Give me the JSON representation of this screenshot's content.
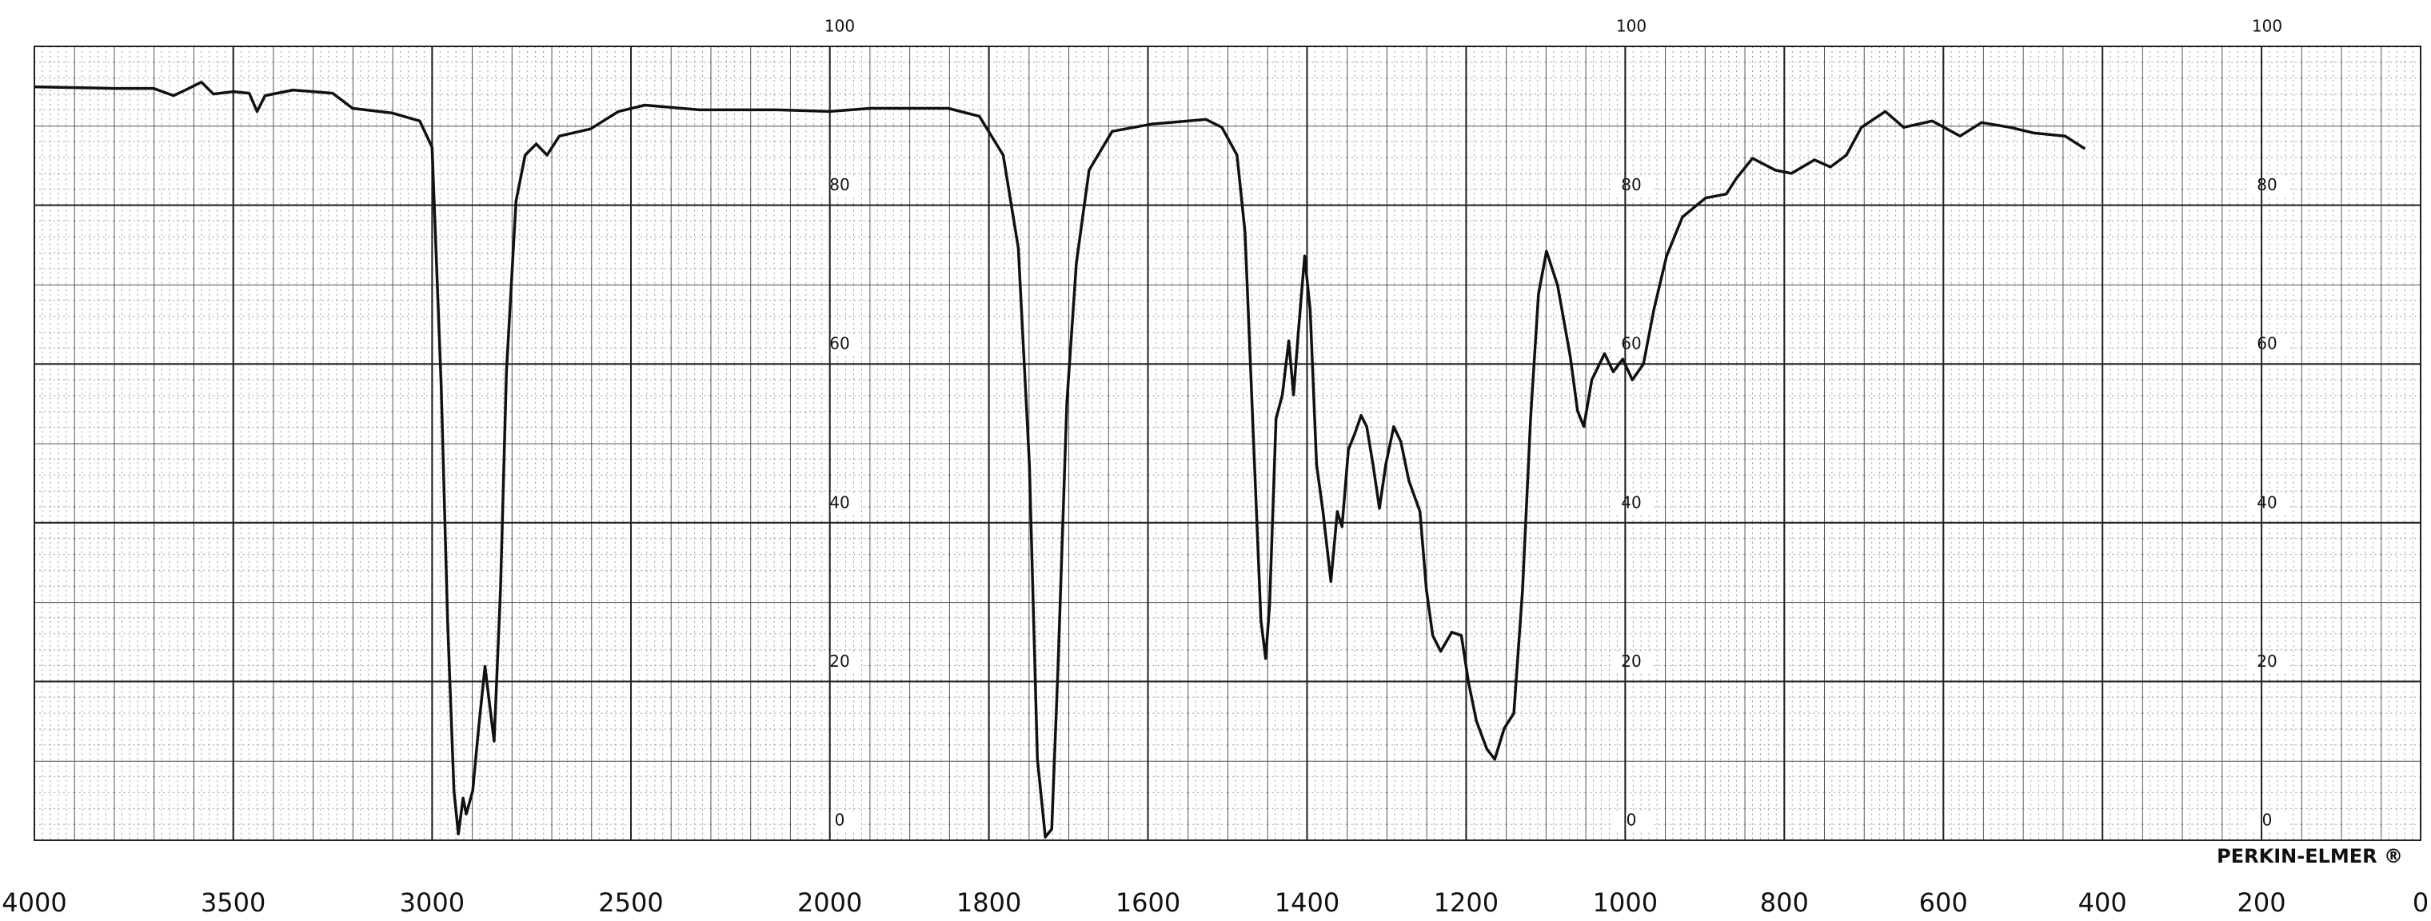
{
  "chart_data": {
    "type": "line",
    "x": [
      4000,
      3800,
      3700,
      3650,
      3620,
      3580,
      3550,
      3500,
      3460,
      3440,
      3420,
      3350,
      3250,
      3200,
      3100,
      3031,
      3000,
      2977,
      2961,
      2945,
      2934,
      2922,
      2914,
      2898,
      2883,
      2867,
      2855,
      2844,
      2828,
      2813,
      2789,
      2766,
      2738,
      2711,
      2680,
      2602,
      2531,
      2465,
      2328,
      2133,
      2000,
      1949,
      1851,
      1812,
      1782,
      1763,
      1749,
      1739,
      1729,
      1721,
      1713,
      1702,
      1690,
      1674,
      1645,
      1596,
      1527,
      1507,
      1488,
      1478,
      1466,
      1458,
      1452,
      1447,
      1439,
      1431,
      1423,
      1417,
      1411,
      1403,
      1396,
      1388,
      1380,
      1370,
      1362,
      1356,
      1348,
      1340,
      1332,
      1325,
      1317,
      1309,
      1301,
      1291,
      1282,
      1272,
      1258,
      1250,
      1242,
      1232,
      1218,
      1206,
      1197,
      1187,
      1174,
      1164,
      1152,
      1140,
      1129,
      1119,
      1109,
      1099,
      1085,
      1069,
      1060,
      1052,
      1042,
      1026,
      1015,
      1003,
      991,
      977,
      964,
      948,
      928,
      899,
      873,
      860,
      840,
      811,
      791,
      762,
      742,
      722,
      703,
      673,
      650,
      614,
      579,
      552,
      516,
      487,
      447,
      422
    ],
    "values": [
      94.9,
      94.7,
      94.7,
      93.8,
      94.5,
      95.5,
      94,
      94.3,
      94.1,
      91.8,
      93.8,
      94.5,
      94.1,
      92.2,
      91.6,
      90.6,
      87.3,
      57,
      27.7,
      6.2,
      0.8,
      5.3,
      3.3,
      6.2,
      14.1,
      21.9,
      17,
      12.5,
      31.6,
      59,
      80.5,
      86.3,
      87.7,
      86.3,
      88.7,
      89.6,
      91.8,
      92.6,
      92,
      92,
      91.8,
      92.2,
      92.2,
      91.2,
      86.3,
      74.6,
      47.3,
      10.2,
      0.4,
      1.4,
      21.9,
      55.1,
      72.7,
      84.4,
      89.3,
      90.2,
      90.8,
      89.8,
      86.3,
      76.6,
      47.3,
      27.7,
      22.9,
      29.7,
      53.1,
      56.1,
      62.9,
      56.1,
      63.9,
      73.6,
      66.8,
      47.3,
      41.4,
      32.6,
      41.4,
      39.5,
      49.2,
      51.2,
      53.5,
      52.1,
      47.3,
      41.8,
      47.3,
      52.1,
      50.2,
      45.3,
      41.4,
      31.6,
      25.8,
      23.8,
      26.2,
      25.8,
      19.9,
      15,
      11.5,
      10.2,
      14.1,
      16,
      31.6,
      53.1,
      68.8,
      74.2,
      69.9,
      60.9,
      54.1,
      52.1,
      58,
      61.3,
      59,
      60.6,
      58,
      60,
      66.8,
      73.6,
      78.5,
      80.9,
      81.4,
      83.4,
      85.9,
      84.4,
      84,
      85.7,
      84.8,
      86.3,
      89.8,
      91.8,
      89.8,
      90.6,
      88.7,
      90.4,
      89.8,
      89.1,
      88.7,
      87.1
    ],
    "color": "#111111",
    "xlim": [
      4000,
      0
    ],
    "xbreak": 2000,
    "xticks": [
      4000,
      3500,
      3000,
      2500,
      2000,
      1800,
      1600,
      1400,
      1200,
      1000,
      800,
      600,
      400,
      200,
      0
    ],
    "ylim": [
      0,
      100
    ],
    "yticks": [
      0,
      20,
      40,
      60,
      80,
      100
    ],
    "grid": true,
    "annotations": [
      "PERKIN-ELMER ®"
    ]
  }
}
